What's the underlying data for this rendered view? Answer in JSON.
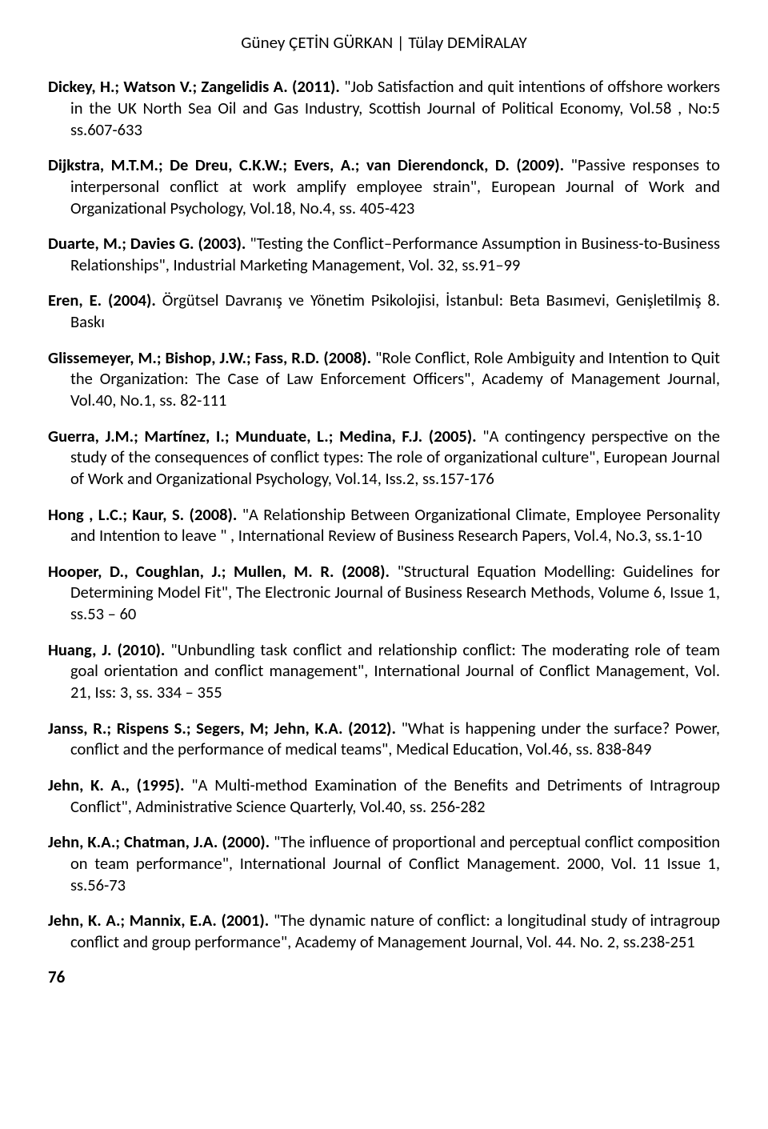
{
  "header": "Güney ÇETİN GÜRKAN | Tülay DEMİRALAY",
  "references": [
    {
      "authors": "Dickey, H.; Watson V.; Zangelidis A. (2011).",
      "text": " \"Job Satisfaction and quit intentions of offshore workers in the UK North Sea Oil and Gas Industry, Scottish Journal of Political Economy, Vol.58 , No:5 ss.607-633"
    },
    {
      "authors": "Dijkstra, M.T.M.; De Dreu, C.K.W.; Evers, A.; van Dierendonck, D. (2009).",
      "text": " \"Passive responses to interpersonal conflict at work amplify employee strain\", European Journal of Work and Organizational Psychology, Vol.18, No.4, ss. 405-423"
    },
    {
      "authors": "Duarte, M.; Davies G. (2003).",
      "text": " \"Testing the Conflict–Performance Assumption in Business-to-Business Relationships\", Industrial Marketing Management, Vol. 32, ss.91–99"
    },
    {
      "authors": "Eren, E. (2004).",
      "text": " Örgütsel Davranış ve Yönetim Psikolojisi, İstanbul: Beta Basımevi, Genişletilmiş 8. Baskı"
    },
    {
      "authors": "Glissemeyer, M.; Bishop, J.W.; Fass, R.D. (2008).",
      "text": " \"Role Conflict, Role Ambiguity and Intention to Quit the Organization: The Case of Law Enforcement Officers\", Academy of Management Journal, Vol.40, No.1, ss. 82-111"
    },
    {
      "authors": "Guerra, J.M.; Martínez, I.; Munduate, L.; Medina, F.J. (2005).",
      "text": " \"A contingency perspective on the study of the consequences of conflict types: The role of organizational culture\", European Journal of Work and Organizational Psychology, Vol.14, Iss.2, ss.157-176"
    },
    {
      "authors": "Hong , L.C.; Kaur, S. (2008).",
      "text": " \"A Relationship Between Organizational Climate, Employee Personality and Intention to leave \" , International Review of Business Research Papers, Vol.4, No.3, ss.1-10"
    },
    {
      "authors": "Hooper, D., Coughlan, J.; Mullen, M. R. (2008).",
      "text": " \"Structural Equation Modelling: Guidelines for Determining Model Fit\", The Electronic Journal of Business Research Methods, Volume 6, Issue 1, ss.53 – 60"
    },
    {
      "authors": "Huang, J. (2010).",
      "text": " \"Unbundling task conflict and relationship conflict: The moderating role of team goal orientation and conflict management\", International Journal of Conflict Management, Vol. 21, Iss: 3, ss. 334 – 355"
    },
    {
      "authors": "Janss, R.; Rispens S.; Segers, M; Jehn, K.A. (2012).",
      "text": " \"What is happening under the surface? Power, conflict and the performance of medical teams\", Medical Education, Vol.46, ss. 838-849"
    },
    {
      "authors": "Jehn, K. A., (1995).",
      "text": " \"A Multi-method Examination of the Benefits and Detriments of Intragroup Conflict\", Administrative Science Quarterly, Vol.40, ss. 256-282"
    },
    {
      "authors": "Jehn, K.A.; Chatman, J.A. (2000).",
      "text": " \"The influence of proportional and perceptual conflict composition on team performance\",  International Journal of Conflict Management. 2000, Vol. 11 Issue 1, ss.56-73"
    },
    {
      "authors": "Jehn, K. A.; Mannix, E.A. (2001).",
      "text": "  \"The dynamic nature of conflict: a longitudinal study of intragroup conflict and group performance\", Academy of Management Journal, Vol. 44. No. 2, ss.238-251"
    }
  ],
  "pageNumber": "76"
}
